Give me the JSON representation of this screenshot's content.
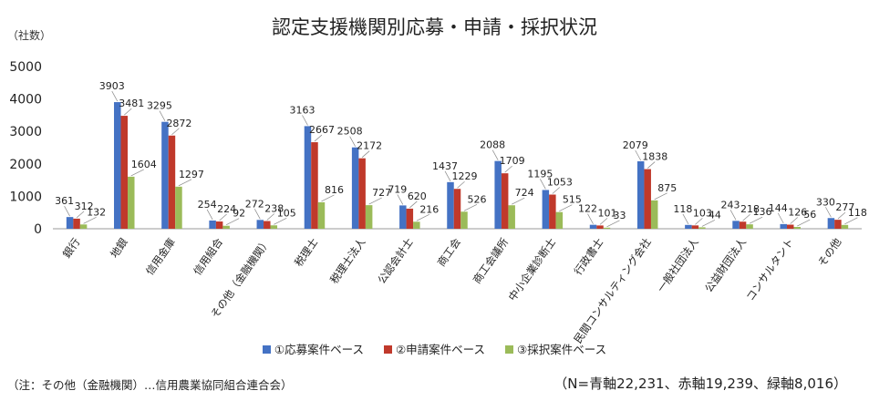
{
  "chart_data": {
    "type": "bar",
    "title": "認定支援機関別応募・申請・採択状況",
    "ylabel": "（社数）",
    "ylim": [
      0,
      5000
    ],
    "yticks": [
      0,
      1000,
      2000,
      3000,
      4000,
      5000
    ],
    "grid": false,
    "legend_position": "bottom",
    "categories": [
      "銀行",
      "地銀",
      "信用金庫",
      "信用組合",
      "その他（金融機関）",
      "税理士",
      "税理士法人",
      "公認会計士",
      "商工会",
      "商工会議所",
      "中小企業診断士",
      "行政書士",
      "民間コンサルティング会社",
      "一般社団法人",
      "公益財団法人",
      "コンサルタント",
      "その他"
    ],
    "series": [
      {
        "name": "①応募案件ベース",
        "color": "#4472C4",
        "values": [
          361,
          3903,
          3295,
          254,
          272,
          3163,
          2508,
          719,
          1437,
          2088,
          1195,
          122,
          2079,
          118,
          243,
          144,
          330
        ]
      },
      {
        "name": "②申請案件ベース",
        "color": "#C0392B",
        "values": [
          312,
          3481,
          2872,
          224,
          238,
          2667,
          2172,
          620,
          1229,
          1709,
          1053,
          101,
          1838,
          103,
          218,
          126,
          277
        ]
      },
      {
        "name": "③採択案件ベース",
        "color": "#9BBB59",
        "values": [
          132,
          1604,
          1297,
          92,
          105,
          816,
          727,
          216,
          526,
          724,
          515,
          33,
          875,
          44,
          136,
          56,
          118
        ]
      }
    ]
  },
  "legend": {
    "items": [
      {
        "label": "①応募案件ベース",
        "color": "#4472C4"
      },
      {
        "label": "②申請案件ベース",
        "color": "#C0392B"
      },
      {
        "label": "③採択案件ベース",
        "color": "#9BBB59"
      }
    ]
  },
  "footnote": "（注：その他（金融機関）…信用農業協同組合連合会）",
  "totals": "（N=青軸22,231、赤軸19,239、緑軸8,016）"
}
